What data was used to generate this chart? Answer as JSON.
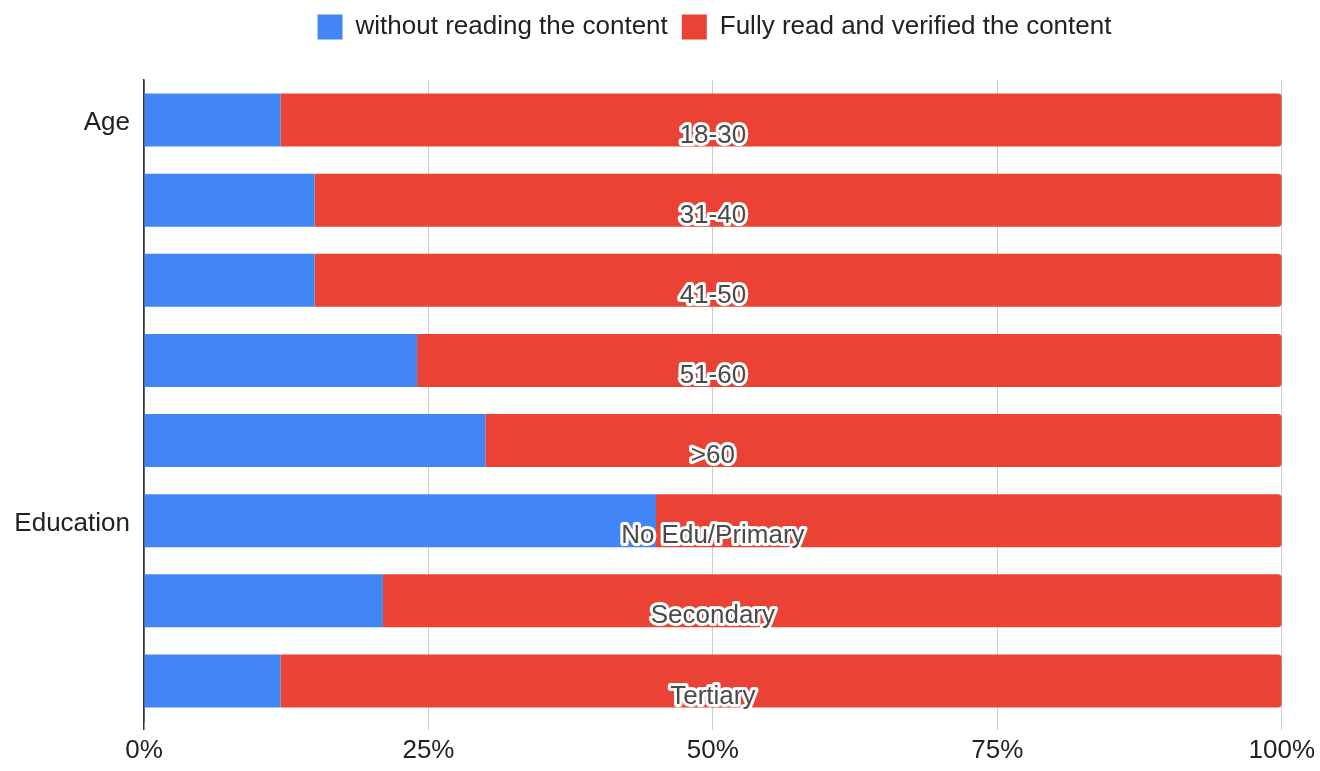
{
  "chart_data": {
    "type": "bar",
    "orientation": "horizontal",
    "stacked": true,
    "categories": [
      "18-30",
      "31-40",
      "41-50",
      "51-60",
      ">60",
      "No Edu/Primary",
      "Secondary",
      "Tertiary"
    ],
    "series": [
      {
        "name": "without reading the content",
        "color": "#4285f4",
        "values": [
          12,
          15,
          15,
          24,
          30,
          45,
          21,
          12
        ]
      },
      {
        "name": "Fully read and verified the content",
        "color": "#ea4335",
        "values": [
          88,
          85,
          85,
          76,
          70,
          55,
          79,
          88
        ]
      }
    ],
    "xlim": [
      0,
      100
    ],
    "xticks": [
      {
        "value": 0,
        "label": "0%"
      },
      {
        "value": 25,
        "label": "25%"
      },
      {
        "value": 50,
        "label": "50%"
      },
      {
        "value": 75,
        "label": "75%"
      },
      {
        "value": 100,
        "label": "100%"
      }
    ],
    "grid": "x",
    "legend": "top",
    "annotations": [
      "Age",
      "Education"
    ]
  }
}
